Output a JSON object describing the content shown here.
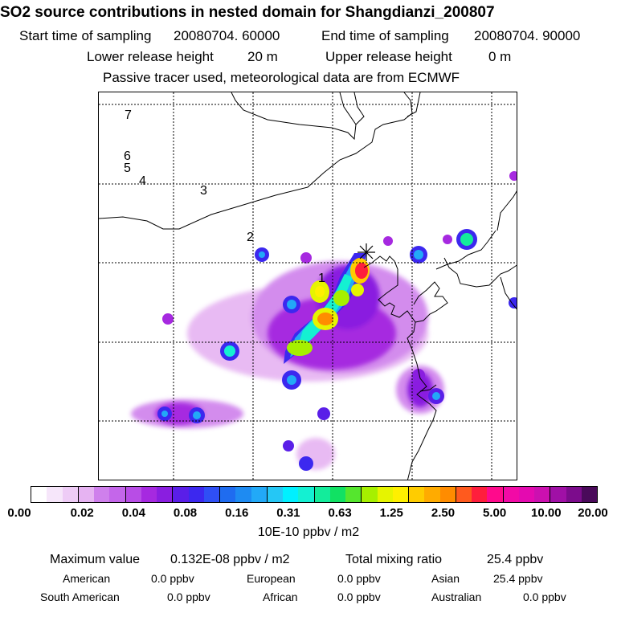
{
  "header": {
    "title": "SO2 source contributions in nested domain for Shangdianzi_200807",
    "start_label": "Start time of sampling",
    "start_value": "20080704. 60000",
    "end_label": "End time of sampling",
    "end_value": "20080704. 90000",
    "lower_label": "Lower release height",
    "lower_value": "20 m",
    "upper_label": "Upper release height",
    "upper_value": "0 m",
    "note": "Passive tracer used, meteorological data are from ECMWF"
  },
  "map": {
    "labels": [
      "7",
      "6",
      "5",
      "4",
      "3",
      "2",
      "1"
    ],
    "receptor": "Shangdianzi"
  },
  "colorbar": {
    "colors": [
      "#ffffff",
      "#f6e6fa",
      "#eeccf6",
      "#e6b3f2",
      "#cf80ec",
      "#c466ea",
      "#b84de6",
      "#a629e0",
      "#8a1ee0",
      "#5a1ee8",
      "#3c28ef",
      "#2f4ff5",
      "#1f6cf0",
      "#1e8bf2",
      "#22a9f7",
      "#25c7f5",
      "#00f0ff",
      "#14f0d2",
      "#13ec9b",
      "#11e163",
      "#55e62e",
      "#a6f000",
      "#e6f400",
      "#fff000",
      "#ffcc00",
      "#ffab00",
      "#ff8c00",
      "#ff5a1e",
      "#ff1e3c",
      "#ff0a8c",
      "#f20aa6",
      "#e40ab0",
      "#cc10b0",
      "#a010a6",
      "#7c0c8c",
      "#4a0a5a"
    ],
    "ticks": [
      "0.00",
      "0.02",
      "0.04",
      "0.08",
      "0.16",
      "0.31",
      "0.63",
      "1.25",
      "2.50",
      "5.00",
      "10.00",
      "20.00"
    ],
    "units": "10E-10 ppbv / m2"
  },
  "stats": {
    "max_label": "Maximum value",
    "max_value": "0.132E-08 ppbv / m2",
    "total_label": "Total mixing ratio",
    "total_value": "25.4 ppbv",
    "regions": [
      {
        "name": "American",
        "value": "0.0 ppbv"
      },
      {
        "name": "European",
        "value": "0.0 ppbv"
      },
      {
        "name": "Asian",
        "value": "25.4 ppbv"
      },
      {
        "name": "South American",
        "value": "0.0 ppbv"
      },
      {
        "name": "African",
        "value": "0.0 ppbv"
      },
      {
        "name": "Australian",
        "value": "0.0 ppbv"
      }
    ]
  }
}
